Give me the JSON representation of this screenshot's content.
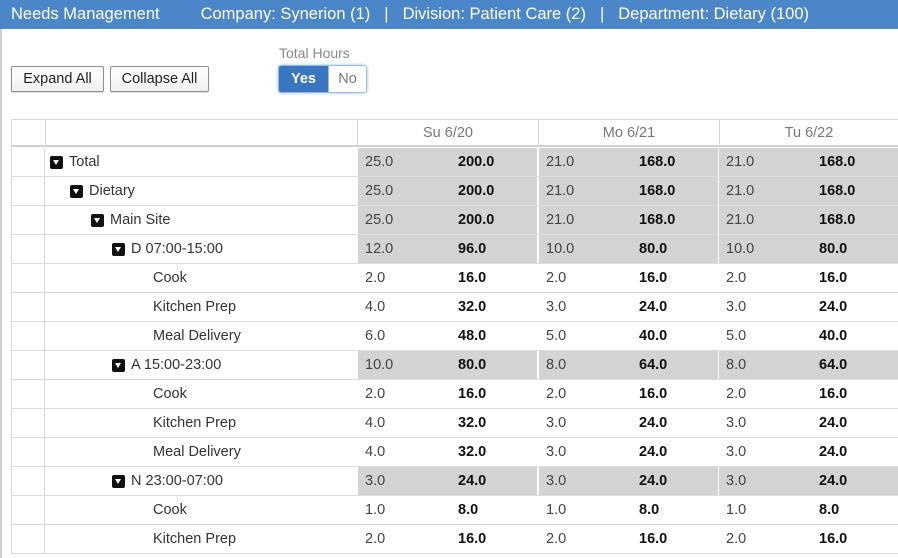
{
  "header": {
    "title": "Needs Management",
    "company": "Company: Synerion (1)",
    "division": "Division: Patient Care (2)",
    "department": "Department: Dietary (100)",
    "separator": "|"
  },
  "toolbar": {
    "expand_all": "Expand All",
    "collapse_all": "Collapse All",
    "total_hours_label": "Total Hours",
    "toggle_yes": "Yes",
    "toggle_no": "No",
    "toggle_selected": "Yes"
  },
  "columns": [
    "Su 6/20",
    "Mo 6/21",
    "Tu 6/22"
  ],
  "rows": [
    {
      "label": "Total",
      "level": 0,
      "group": true,
      "values": [
        [
          "25.0",
          "200.0"
        ],
        [
          "21.0",
          "168.0"
        ],
        [
          "21.0",
          "168.0"
        ]
      ]
    },
    {
      "label": "Dietary",
      "level": 1,
      "group": true,
      "values": [
        [
          "25.0",
          "200.0"
        ],
        [
          "21.0",
          "168.0"
        ],
        [
          "21.0",
          "168.0"
        ]
      ]
    },
    {
      "label": "Main Site",
      "level": 2,
      "group": true,
      "values": [
        [
          "25.0",
          "200.0"
        ],
        [
          "21.0",
          "168.0"
        ],
        [
          "21.0",
          "168.0"
        ]
      ]
    },
    {
      "label": "D 07:00-15:00",
      "level": 3,
      "group": true,
      "values": [
        [
          "12.0",
          "96.0"
        ],
        [
          "10.0",
          "80.0"
        ],
        [
          "10.0",
          "80.0"
        ]
      ]
    },
    {
      "label": "Cook",
      "level": 4,
      "group": false,
      "values": [
        [
          "2.0",
          "16.0"
        ],
        [
          "2.0",
          "16.0"
        ],
        [
          "2.0",
          "16.0"
        ]
      ]
    },
    {
      "label": "Kitchen Prep",
      "level": 4,
      "group": false,
      "values": [
        [
          "4.0",
          "32.0"
        ],
        [
          "3.0",
          "24.0"
        ],
        [
          "3.0",
          "24.0"
        ]
      ]
    },
    {
      "label": "Meal Delivery",
      "level": 4,
      "group": false,
      "values": [
        [
          "6.0",
          "48.0"
        ],
        [
          "5.0",
          "40.0"
        ],
        [
          "5.0",
          "40.0"
        ]
      ]
    },
    {
      "label": "A 15:00-23:00",
      "level": 3,
      "group": true,
      "values": [
        [
          "10.0",
          "80.0"
        ],
        [
          "8.0",
          "64.0"
        ],
        [
          "8.0",
          "64.0"
        ]
      ]
    },
    {
      "label": "Cook",
      "level": 4,
      "group": false,
      "values": [
        [
          "2.0",
          "16.0"
        ],
        [
          "2.0",
          "16.0"
        ],
        [
          "2.0",
          "16.0"
        ]
      ]
    },
    {
      "label": "Kitchen Prep",
      "level": 4,
      "group": false,
      "values": [
        [
          "4.0",
          "32.0"
        ],
        [
          "3.0",
          "24.0"
        ],
        [
          "3.0",
          "24.0"
        ]
      ]
    },
    {
      "label": "Meal Delivery",
      "level": 4,
      "group": false,
      "values": [
        [
          "4.0",
          "32.0"
        ],
        [
          "3.0",
          "24.0"
        ],
        [
          "3.0",
          "24.0"
        ]
      ]
    },
    {
      "label": "N 23:00-07:00",
      "level": 3,
      "group": true,
      "values": [
        [
          "3.0",
          "24.0"
        ],
        [
          "3.0",
          "24.0"
        ],
        [
          "3.0",
          "24.0"
        ]
      ]
    },
    {
      "label": "Cook",
      "level": 4,
      "group": false,
      "values": [
        [
          "1.0",
          "8.0"
        ],
        [
          "1.0",
          "8.0"
        ],
        [
          "1.0",
          "8.0"
        ]
      ]
    },
    {
      "label": "Kitchen Prep",
      "level": 4,
      "group": false,
      "values": [
        [
          "2.0",
          "16.0"
        ],
        [
          "2.0",
          "16.0"
        ],
        [
          "2.0",
          "16.0"
        ]
      ]
    }
  ],
  "icons": {
    "caret": "caret-down-icon"
  },
  "colors": {
    "topbar": "#4a86c8",
    "toggle_on": "#3a76bf",
    "shaded_row": "#d3d3d3"
  }
}
